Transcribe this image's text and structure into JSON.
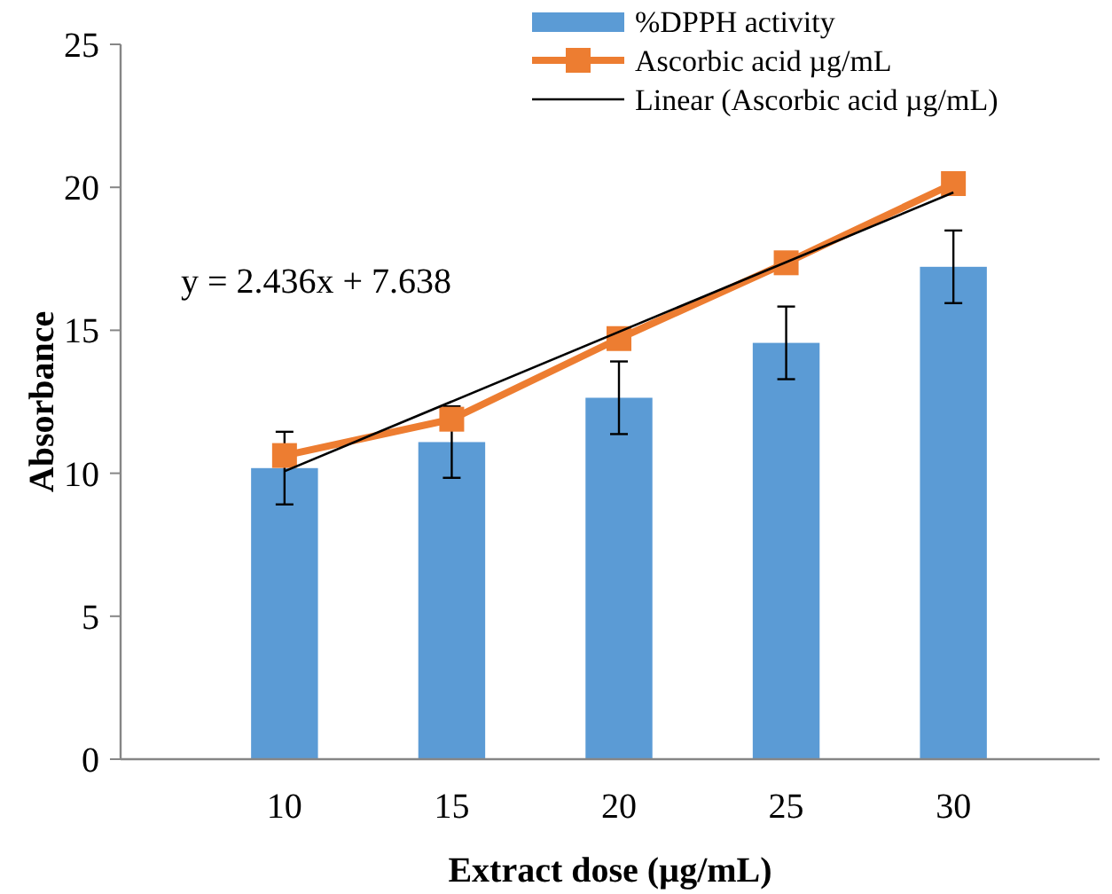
{
  "chart_data": {
    "type": "bar",
    "xlabel": "Extract dose (µg/mL)",
    "ylabel": "Absorbance",
    "categories": [
      "10",
      "15",
      "20",
      "25",
      "30"
    ],
    "series": [
      {
        "name": "%DPPH activity",
        "color": "#5b9bd5",
        "values": [
          10.18,
          11.09,
          12.64,
          14.56,
          17.22
        ],
        "errors": [
          1.27,
          1.25,
          1.27,
          1.27,
          1.27
        ]
      },
      {
        "name": "Ascorbic acid µg/mL",
        "type": "line",
        "color": "#ed7d31",
        "marker": "square",
        "values": [
          10.62,
          11.89,
          14.71,
          17.36,
          20.13
        ]
      },
      {
        "name": "Linear (Ascorbic acid µg/mL)",
        "type": "line",
        "color": "#000000",
        "marker": "none",
        "x": [
          "10",
          "30"
        ],
        "values": [
          10.07,
          19.82
        ]
      }
    ],
    "annotations": [
      "y = 2.436x + 7.638"
    ],
    "ylim": [
      0,
      25
    ],
    "yticks": [
      0,
      5,
      10,
      15,
      20,
      25
    ],
    "grid": false,
    "legend": "top right"
  }
}
